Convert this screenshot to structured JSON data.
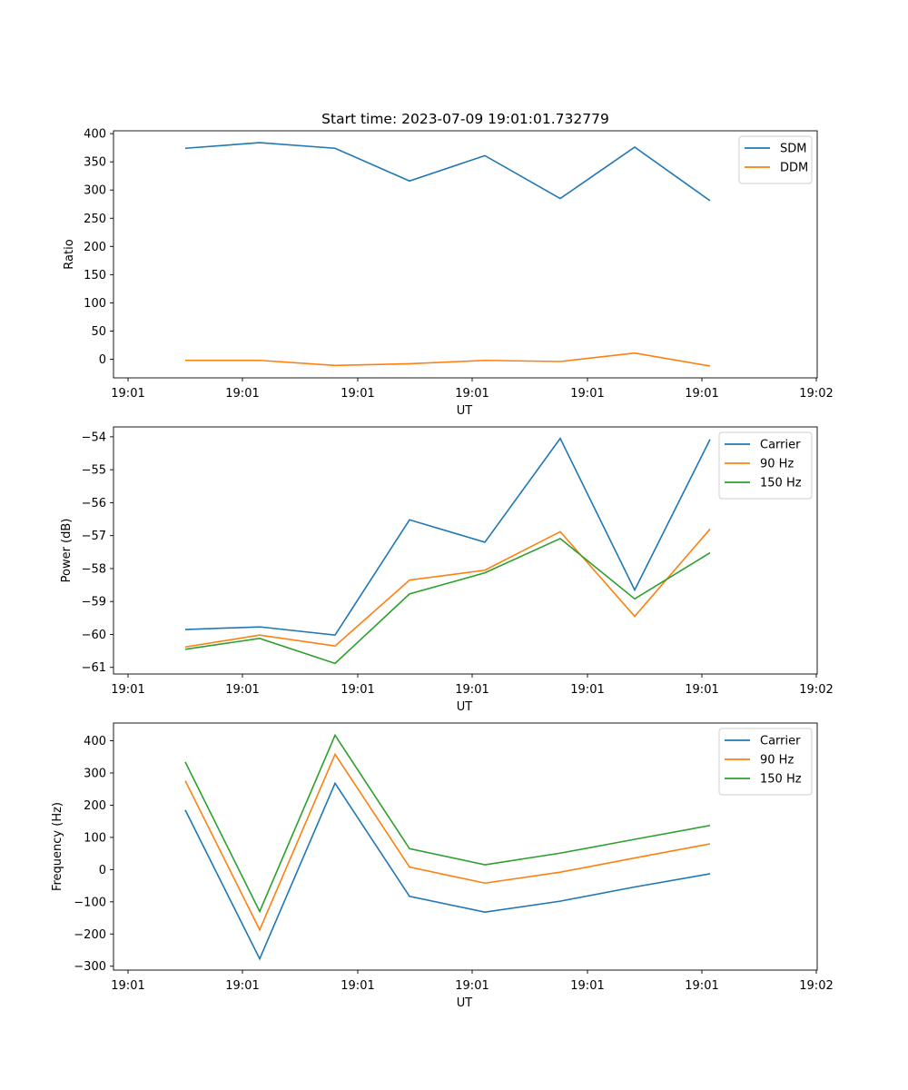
{
  "chart_data": [
    {
      "type": "line",
      "title": "Start time: 2023-07-09 19:01:01.732779",
      "xlabel": "UT",
      "ylabel": "Ratio",
      "x_tick_labels": [
        "19:01",
        "19:01",
        "19:01",
        "19:01",
        "19:01",
        "19:01",
        "19:02"
      ],
      "y_ticks": [
        0,
        50,
        100,
        150,
        200,
        250,
        300,
        350,
        400
      ],
      "ylim": [
        -33,
        405
      ],
      "legend_position": "top-right",
      "grid": false,
      "series": [
        {
          "name": "SDM",
          "color": "#1f77b4",
          "values": [
            374,
            384,
            374,
            316,
            361,
            285,
            376,
            281
          ]
        },
        {
          "name": "DDM",
          "color": "#ff7f0e",
          "values": [
            -2,
            -2,
            -11,
            -8,
            -2,
            -4,
            11,
            -12
          ]
        }
      ]
    },
    {
      "type": "line",
      "title": "",
      "xlabel": "UT",
      "ylabel": "Power (dB)",
      "x_tick_labels": [
        "19:01",
        "19:01",
        "19:01",
        "19:01",
        "19:01",
        "19:01",
        "19:02"
      ],
      "y_ticks": [
        -61,
        -60,
        -59,
        -58,
        -57,
        -56,
        -55,
        -54
      ],
      "ylim": [
        -61.2,
        -53.7
      ],
      "legend_position": "top-right",
      "grid": false,
      "series": [
        {
          "name": "Carrier",
          "color": "#1f77b4",
          "values": [
            -59.85,
            -59.77,
            -60.02,
            -56.52,
            -57.2,
            -54.05,
            -58.65,
            -54.08
          ]
        },
        {
          "name": "90 Hz",
          "color": "#ff7f0e",
          "values": [
            -60.38,
            -60.02,
            -60.35,
            -58.35,
            -58.05,
            -56.88,
            -59.45,
            -56.8
          ]
        },
        {
          "name": "150 Hz",
          "color": "#2ca02c",
          "values": [
            -60.45,
            -60.12,
            -60.88,
            -58.77,
            -58.13,
            -57.09,
            -58.92,
            -57.52
          ]
        }
      ]
    },
    {
      "type": "line",
      "title": "",
      "xlabel": "UT",
      "ylabel": "Frequency (Hz)",
      "x_tick_labels": [
        "19:01",
        "19:01",
        "19:01",
        "19:01",
        "19:01",
        "19:01",
        "19:02"
      ],
      "y_ticks": [
        -300,
        -200,
        -100,
        0,
        100,
        200,
        300,
        400
      ],
      "ylim": [
        -312,
        455
      ],
      "legend_position": "top-right",
      "grid": false,
      "series": [
        {
          "name": "Carrier",
          "color": "#1f77b4",
          "values": [
            185,
            -277,
            268,
            -83,
            -132,
            -98,
            -54,
            -13
          ]
        },
        {
          "name": "90 Hz",
          "color": "#ff7f0e",
          "values": [
            276,
            -187,
            358,
            8,
            -42,
            -8,
            36,
            80
          ]
        },
        {
          "name": "150 Hz",
          "color": "#2ca02c",
          "values": [
            334,
            -130,
            417,
            65,
            15,
            51,
            94,
            137
          ]
        }
      ]
    }
  ]
}
